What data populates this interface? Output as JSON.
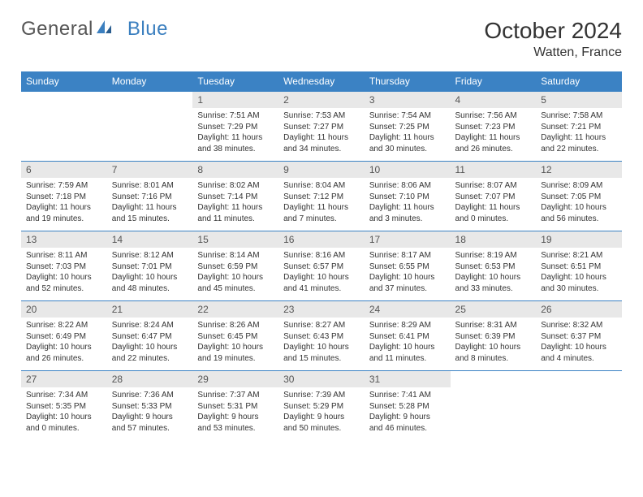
{
  "brand": {
    "part1": "General",
    "part2": "Blue"
  },
  "title": "October 2024",
  "location": "Watten, France",
  "colors": {
    "header_bg": "#3b82c4",
    "header_text": "#ffffff",
    "daynum_bg": "#e8e8e8",
    "text": "#333333",
    "rule": "#3b82c4"
  },
  "day_names": [
    "Sunday",
    "Monday",
    "Tuesday",
    "Wednesday",
    "Thursday",
    "Friday",
    "Saturday"
  ],
  "weeks": [
    [
      null,
      null,
      {
        "n": "1",
        "sr": "Sunrise: 7:51 AM",
        "ss": "Sunset: 7:29 PM",
        "dl1": "Daylight: 11 hours",
        "dl2": "and 38 minutes."
      },
      {
        "n": "2",
        "sr": "Sunrise: 7:53 AM",
        "ss": "Sunset: 7:27 PM",
        "dl1": "Daylight: 11 hours",
        "dl2": "and 34 minutes."
      },
      {
        "n": "3",
        "sr": "Sunrise: 7:54 AM",
        "ss": "Sunset: 7:25 PM",
        "dl1": "Daylight: 11 hours",
        "dl2": "and 30 minutes."
      },
      {
        "n": "4",
        "sr": "Sunrise: 7:56 AM",
        "ss": "Sunset: 7:23 PM",
        "dl1": "Daylight: 11 hours",
        "dl2": "and 26 minutes."
      },
      {
        "n": "5",
        "sr": "Sunrise: 7:58 AM",
        "ss": "Sunset: 7:21 PM",
        "dl1": "Daylight: 11 hours",
        "dl2": "and 22 minutes."
      }
    ],
    [
      {
        "n": "6",
        "sr": "Sunrise: 7:59 AM",
        "ss": "Sunset: 7:18 PM",
        "dl1": "Daylight: 11 hours",
        "dl2": "and 19 minutes."
      },
      {
        "n": "7",
        "sr": "Sunrise: 8:01 AM",
        "ss": "Sunset: 7:16 PM",
        "dl1": "Daylight: 11 hours",
        "dl2": "and 15 minutes."
      },
      {
        "n": "8",
        "sr": "Sunrise: 8:02 AM",
        "ss": "Sunset: 7:14 PM",
        "dl1": "Daylight: 11 hours",
        "dl2": "and 11 minutes."
      },
      {
        "n": "9",
        "sr": "Sunrise: 8:04 AM",
        "ss": "Sunset: 7:12 PM",
        "dl1": "Daylight: 11 hours",
        "dl2": "and 7 minutes."
      },
      {
        "n": "10",
        "sr": "Sunrise: 8:06 AM",
        "ss": "Sunset: 7:10 PM",
        "dl1": "Daylight: 11 hours",
        "dl2": "and 3 minutes."
      },
      {
        "n": "11",
        "sr": "Sunrise: 8:07 AM",
        "ss": "Sunset: 7:07 PM",
        "dl1": "Daylight: 11 hours",
        "dl2": "and 0 minutes."
      },
      {
        "n": "12",
        "sr": "Sunrise: 8:09 AM",
        "ss": "Sunset: 7:05 PM",
        "dl1": "Daylight: 10 hours",
        "dl2": "and 56 minutes."
      }
    ],
    [
      {
        "n": "13",
        "sr": "Sunrise: 8:11 AM",
        "ss": "Sunset: 7:03 PM",
        "dl1": "Daylight: 10 hours",
        "dl2": "and 52 minutes."
      },
      {
        "n": "14",
        "sr": "Sunrise: 8:12 AM",
        "ss": "Sunset: 7:01 PM",
        "dl1": "Daylight: 10 hours",
        "dl2": "and 48 minutes."
      },
      {
        "n": "15",
        "sr": "Sunrise: 8:14 AM",
        "ss": "Sunset: 6:59 PM",
        "dl1": "Daylight: 10 hours",
        "dl2": "and 45 minutes."
      },
      {
        "n": "16",
        "sr": "Sunrise: 8:16 AM",
        "ss": "Sunset: 6:57 PM",
        "dl1": "Daylight: 10 hours",
        "dl2": "and 41 minutes."
      },
      {
        "n": "17",
        "sr": "Sunrise: 8:17 AM",
        "ss": "Sunset: 6:55 PM",
        "dl1": "Daylight: 10 hours",
        "dl2": "and 37 minutes."
      },
      {
        "n": "18",
        "sr": "Sunrise: 8:19 AM",
        "ss": "Sunset: 6:53 PM",
        "dl1": "Daylight: 10 hours",
        "dl2": "and 33 minutes."
      },
      {
        "n": "19",
        "sr": "Sunrise: 8:21 AM",
        "ss": "Sunset: 6:51 PM",
        "dl1": "Daylight: 10 hours",
        "dl2": "and 30 minutes."
      }
    ],
    [
      {
        "n": "20",
        "sr": "Sunrise: 8:22 AM",
        "ss": "Sunset: 6:49 PM",
        "dl1": "Daylight: 10 hours",
        "dl2": "and 26 minutes."
      },
      {
        "n": "21",
        "sr": "Sunrise: 8:24 AM",
        "ss": "Sunset: 6:47 PM",
        "dl1": "Daylight: 10 hours",
        "dl2": "and 22 minutes."
      },
      {
        "n": "22",
        "sr": "Sunrise: 8:26 AM",
        "ss": "Sunset: 6:45 PM",
        "dl1": "Daylight: 10 hours",
        "dl2": "and 19 minutes."
      },
      {
        "n": "23",
        "sr": "Sunrise: 8:27 AM",
        "ss": "Sunset: 6:43 PM",
        "dl1": "Daylight: 10 hours",
        "dl2": "and 15 minutes."
      },
      {
        "n": "24",
        "sr": "Sunrise: 8:29 AM",
        "ss": "Sunset: 6:41 PM",
        "dl1": "Daylight: 10 hours",
        "dl2": "and 11 minutes."
      },
      {
        "n": "25",
        "sr": "Sunrise: 8:31 AM",
        "ss": "Sunset: 6:39 PM",
        "dl1": "Daylight: 10 hours",
        "dl2": "and 8 minutes."
      },
      {
        "n": "26",
        "sr": "Sunrise: 8:32 AM",
        "ss": "Sunset: 6:37 PM",
        "dl1": "Daylight: 10 hours",
        "dl2": "and 4 minutes."
      }
    ],
    [
      {
        "n": "27",
        "sr": "Sunrise: 7:34 AM",
        "ss": "Sunset: 5:35 PM",
        "dl1": "Daylight: 10 hours",
        "dl2": "and 0 minutes."
      },
      {
        "n": "28",
        "sr": "Sunrise: 7:36 AM",
        "ss": "Sunset: 5:33 PM",
        "dl1": "Daylight: 9 hours",
        "dl2": "and 57 minutes."
      },
      {
        "n": "29",
        "sr": "Sunrise: 7:37 AM",
        "ss": "Sunset: 5:31 PM",
        "dl1": "Daylight: 9 hours",
        "dl2": "and 53 minutes."
      },
      {
        "n": "30",
        "sr": "Sunrise: 7:39 AM",
        "ss": "Sunset: 5:29 PM",
        "dl1": "Daylight: 9 hours",
        "dl2": "and 50 minutes."
      },
      {
        "n": "31",
        "sr": "Sunrise: 7:41 AM",
        "ss": "Sunset: 5:28 PM",
        "dl1": "Daylight: 9 hours",
        "dl2": "and 46 minutes."
      },
      null,
      null
    ]
  ]
}
